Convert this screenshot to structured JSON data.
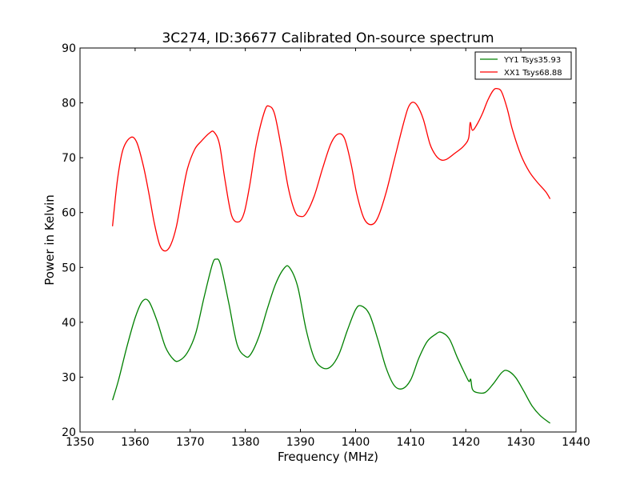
{
  "chart_data": {
    "type": "line",
    "title": "3C274, ID:36677 Calibrated On-source spectrum",
    "xlabel": "Frequency (MHz)",
    "ylabel": "Power in Kelvin",
    "xlim": [
      1350,
      1440
    ],
    "ylim": [
      20,
      90
    ],
    "xticks": [
      1350,
      1360,
      1370,
      1380,
      1390,
      1400,
      1410,
      1420,
      1430,
      1440
    ],
    "yticks": [
      20,
      30,
      40,
      50,
      60,
      70,
      80,
      90
    ],
    "grid": false,
    "legend_position": "top-right",
    "series": [
      {
        "name": "YY1 Tsys35.93",
        "color": "#008000",
        "x": [
          1355.9,
          1357.0,
          1358.5,
          1360.0,
          1361.3,
          1362.5,
          1364.0,
          1365.5,
          1367.0,
          1368.0,
          1369.5,
          1371.0,
          1372.5,
          1374.0,
          1374.7,
          1375.5,
          1377.0,
          1378.5,
          1380.0,
          1381.0,
          1382.5,
          1384.0,
          1385.5,
          1387.0,
          1388.0,
          1389.5,
          1391.0,
          1392.5,
          1394.0,
          1395.5,
          1397.0,
          1398.5,
          1400.0,
          1401.0,
          1402.5,
          1404.0,
          1405.5,
          1407.0,
          1408.5,
          1410.0,
          1411.5,
          1413.0,
          1414.5,
          1415.5,
          1417.0,
          1418.5,
          1420.0,
          1420.6,
          1420.9,
          1421.2,
          1422.0,
          1423.5,
          1425.0,
          1426.5,
          1427.5,
          1429.0,
          1430.5,
          1432.0,
          1433.5,
          1435.3
        ],
        "values": [
          25.8,
          29.5,
          35.5,
          40.8,
          43.8,
          43.8,
          40.2,
          35.5,
          33.2,
          33.0,
          34.5,
          38.0,
          44.5,
          50.5,
          51.5,
          50.5,
          43.5,
          36.0,
          33.8,
          34.2,
          37.5,
          42.5,
          47.0,
          49.8,
          50.0,
          46.5,
          38.8,
          33.5,
          31.7,
          31.9,
          34.2,
          38.5,
          42.3,
          43.0,
          41.5,
          37.0,
          31.8,
          28.5,
          27.9,
          29.5,
          33.5,
          36.5,
          37.8,
          38.2,
          37.0,
          33.5,
          30.3,
          29.2,
          29.6,
          27.8,
          27.2,
          27.2,
          28.8,
          30.8,
          31.2,
          30.0,
          27.5,
          24.8,
          23.0,
          21.6
        ]
      },
      {
        "name": "XX1 Tsys68.88",
        "color": "#ff0000",
        "x": [
          1355.9,
          1356.8,
          1357.8,
          1359.2,
          1360.3,
          1361.5,
          1362.5,
          1363.5,
          1364.5,
          1365.5,
          1366.5,
          1367.5,
          1368.5,
          1369.5,
          1370.8,
          1372.0,
          1373.5,
          1374.3,
          1375.3,
          1376.3,
          1377.5,
          1378.8,
          1379.8,
          1380.8,
          1382.0,
          1383.5,
          1384.3,
          1385.3,
          1386.5,
          1387.8,
          1389.0,
          1390.0,
          1391.0,
          1392.5,
          1394.0,
          1395.5,
          1396.8,
          1398.0,
          1399.2,
          1400.2,
          1401.5,
          1402.8,
          1404.0,
          1405.5,
          1407.0,
          1408.5,
          1409.5,
          1410.3,
          1411.2,
          1412.3,
          1413.5,
          1414.5,
          1415.5,
          1416.5,
          1418.0,
          1419.5,
          1420.5,
          1420.8,
          1421.2,
          1422.0,
          1423.0,
          1424.0,
          1425.0,
          1425.7,
          1426.5,
          1427.5,
          1428.5,
          1430.0,
          1431.5,
          1433.0,
          1434.5,
          1435.3
        ],
        "values": [
          57.5,
          66.0,
          71.5,
          73.7,
          72.8,
          68.5,
          63.5,
          58.0,
          54.0,
          53.0,
          54.2,
          57.5,
          63.0,
          68.0,
          71.5,
          73.0,
          74.5,
          74.7,
          72.5,
          66.0,
          59.5,
          58.3,
          60.0,
          65.0,
          72.5,
          78.5,
          79.4,
          78.0,
          72.0,
          64.5,
          60.2,
          59.3,
          59.8,
          63.0,
          68.0,
          72.5,
          74.3,
          73.5,
          68.8,
          63.5,
          59.0,
          57.8,
          59.0,
          63.5,
          69.5,
          75.5,
          79.0,
          80.1,
          79.5,
          77.0,
          72.5,
          70.5,
          69.6,
          69.7,
          70.8,
          72.0,
          73.5,
          76.4,
          75.0,
          76.0,
          78.0,
          80.5,
          82.3,
          82.6,
          82.0,
          79.0,
          75.0,
          70.5,
          67.5,
          65.5,
          63.8,
          62.5
        ]
      }
    ]
  }
}
